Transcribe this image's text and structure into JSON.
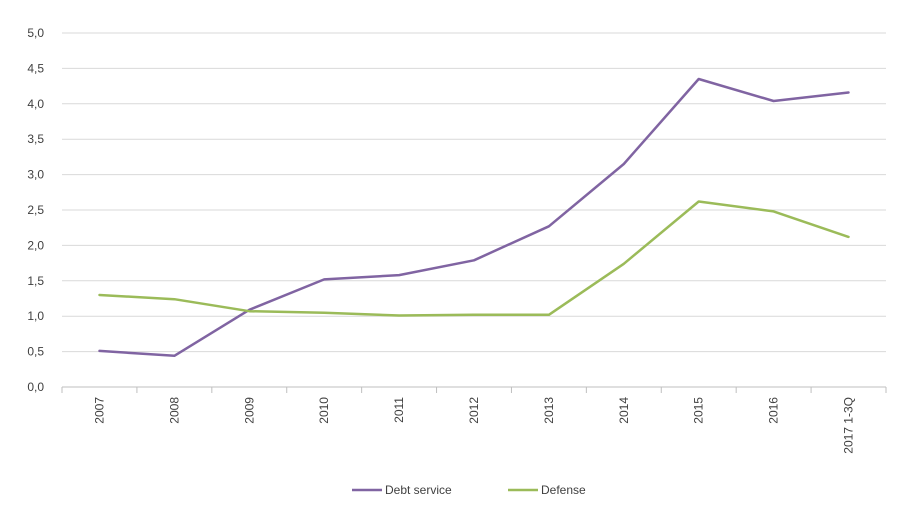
{
  "chart_data": {
    "type": "line",
    "categories": [
      "2007",
      "2008",
      "2009",
      "2010",
      "2011",
      "2012",
      "2013",
      "2014",
      "2015",
      "2016",
      "2017 1-3Q"
    ],
    "series": [
      {
        "name": "Debt service",
        "color": "#8064a2",
        "values": [
          0.51,
          0.44,
          1.09,
          1.52,
          1.58,
          1.79,
          2.27,
          3.15,
          4.35,
          4.04,
          4.16
        ]
      },
      {
        "name": "Defense",
        "color": "#9bbb59",
        "values": [
          1.3,
          1.24,
          1.07,
          1.05,
          1.01,
          1.02,
          1.02,
          1.74,
          2.62,
          2.48,
          2.12
        ]
      }
    ],
    "ylim": [
      0,
      5
    ],
    "yticks": [
      "0,0",
      "0,5",
      "1,0",
      "1,5",
      "2,0",
      "2,5",
      "3,0",
      "3,5",
      "4,0",
      "4,5",
      "5,0"
    ],
    "grid": true,
    "legend_position": "bottom",
    "title": "",
    "xlabel": "",
    "ylabel": ""
  },
  "colors": {
    "grid": "#d9d9d9",
    "axis": "#bfbfbf",
    "text": "#404040"
  }
}
